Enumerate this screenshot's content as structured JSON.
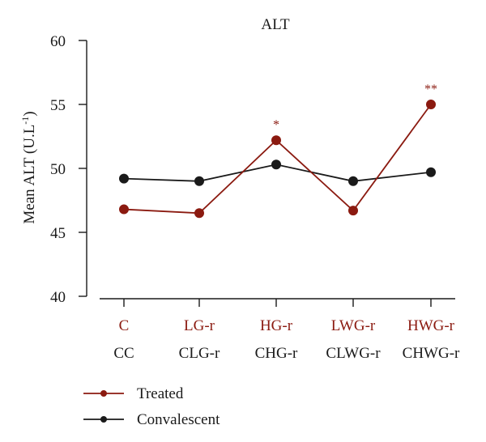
{
  "chart_data": {
    "type": "line",
    "title": "ALT",
    "ylabel": "Mean ALT (U.L",
    "ylabel_sup": "-1",
    "ylabel_close": ")",
    "xlabel": "",
    "ylim": [
      40,
      60
    ],
    "yticks": [
      40,
      45,
      50,
      55,
      60
    ],
    "categories_treated": [
      "C",
      "LG-r",
      "HG-r",
      "LWG-r",
      "HWG-r"
    ],
    "categories_convalescent": [
      "CC",
      "CLG-r",
      "CHG-r",
      "CLWG-r",
      "CHWG-r"
    ],
    "series": [
      {
        "name": "Treated",
        "color": "#8b1a10",
        "values": [
          46.8,
          46.5,
          52.2,
          46.7,
          55.0
        ],
        "significance": [
          "",
          "",
          "*",
          "",
          "**"
        ]
      },
      {
        "name": "Convalescent",
        "color": "#1a1a1a",
        "values": [
          49.2,
          49.0,
          50.3,
          49.0,
          49.7
        ],
        "significance": [
          "",
          "",
          "",
          "",
          ""
        ]
      }
    ],
    "legend_position": "bottom-left",
    "grid": false
  }
}
